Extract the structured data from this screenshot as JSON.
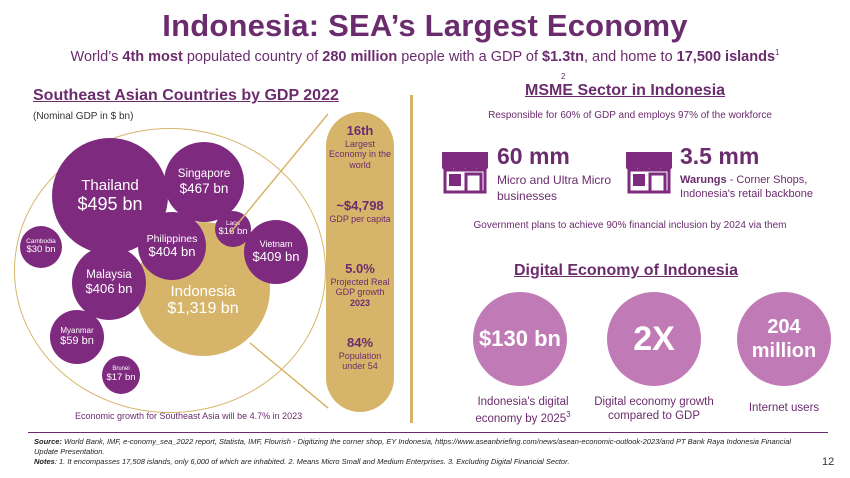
{
  "header": {
    "title": "Indonesia: SEA’s Largest Economy",
    "subtitle_1": "World’s ",
    "subtitle_2": "4th most",
    "subtitle_3": " populated country of ",
    "subtitle_4": "280 million",
    "subtitle_5": " people with a GDP of ",
    "subtitle_6": "$1.3tn",
    "subtitle_7": ", and home to ",
    "subtitle_8": "17,500 islands",
    "subtitle_sup": "1"
  },
  "left": {
    "heading": "Southeast Asian Countries by GDP 2022",
    "unit_note": "(Nominal GDP in $ bn)",
    "bubbles": [
      {
        "name": "Thailand",
        "value": "$495 bn"
      },
      {
        "name": "Singapore",
        "value": "$467 bn"
      },
      {
        "name": "Philippines",
        "value": "$404 bn"
      },
      {
        "name": "Laos",
        "value": "$16 bn"
      },
      {
        "name": "Vietnam",
        "value": "$409 bn"
      },
      {
        "name": "Cambodia",
        "value": "$30 bn"
      },
      {
        "name": "Malaysia",
        "value": "$406 bn"
      },
      {
        "name": "Indonesia",
        "value": "$1,319 bn"
      },
      {
        "name": "Myanmar",
        "value": "$59 bn"
      },
      {
        "name": "Brunei",
        "value": "$17 bn"
      }
    ],
    "growth_note": "Economic growth for Southeast Asia will be 4.7% in 2023",
    "pillar": {
      "rank_big": "16th",
      "rank_text": "Largest Economy in the world",
      "gdppc_big": "~$4,798",
      "gdppc_text": "GDP per capita",
      "growth_big": "5.0%",
      "growth_text": "Projected Real GDP growth",
      "growth_year": "2023",
      "pop_big": "84%",
      "pop_text": "Population under 54"
    }
  },
  "right": {
    "msme_heading": "MSME Sector in Indonesia",
    "msme_sup": "2",
    "msme_sub": "Responsible for 60% of GDP and employs 97% of the workforce",
    "stat1_big": "60 mm",
    "stat1_text": "Micro and Ultra Micro businesses",
    "stat2_big": "3.5 mm",
    "stat2_bold": "Warungs",
    "stat2_text": " - Corner Shops, Indonesia's retail backbone",
    "gov_note": "Government plans to achieve 90% financial inclusion by 2024 via them",
    "digital_heading": "Digital Economy of Indonesia",
    "circles": [
      {
        "value": "$130 bn",
        "caption": "Indonesia's digital economy by 2025",
        "sup": "3"
      },
      {
        "value": "2X",
        "caption": "Digital economy growth compared to GDP",
        "sup": ""
      },
      {
        "value": "204 million",
        "caption": "Internet users",
        "sup": ""
      }
    ]
  },
  "footer": {
    "source_label": "Source:",
    "source_text": " World Bank, IMF, e-conomy_sea_2022 report, Statista, IMF, Flourish - Digitizing the corner shop, EY Indonesia, https://www.aseanbriefing.com/news/asean-economic-outlook-2023/and PT Bank Raya Indonesia Financial Update Presentation.",
    "notes_label": "Notes",
    "notes_text": ": 1. It encompasses 17,508 islands, only 6,000 of which are inhabited. 2. Means Micro Small and Medium Enterprises. 3. Excluding Digital Financial Sector.",
    "page_number": "12"
  },
  "colors": {
    "purple": "#7e2a7f",
    "gold": "#d6b56b",
    "light_purple": "#c07ab6",
    "text": "#6b2c6e"
  }
}
